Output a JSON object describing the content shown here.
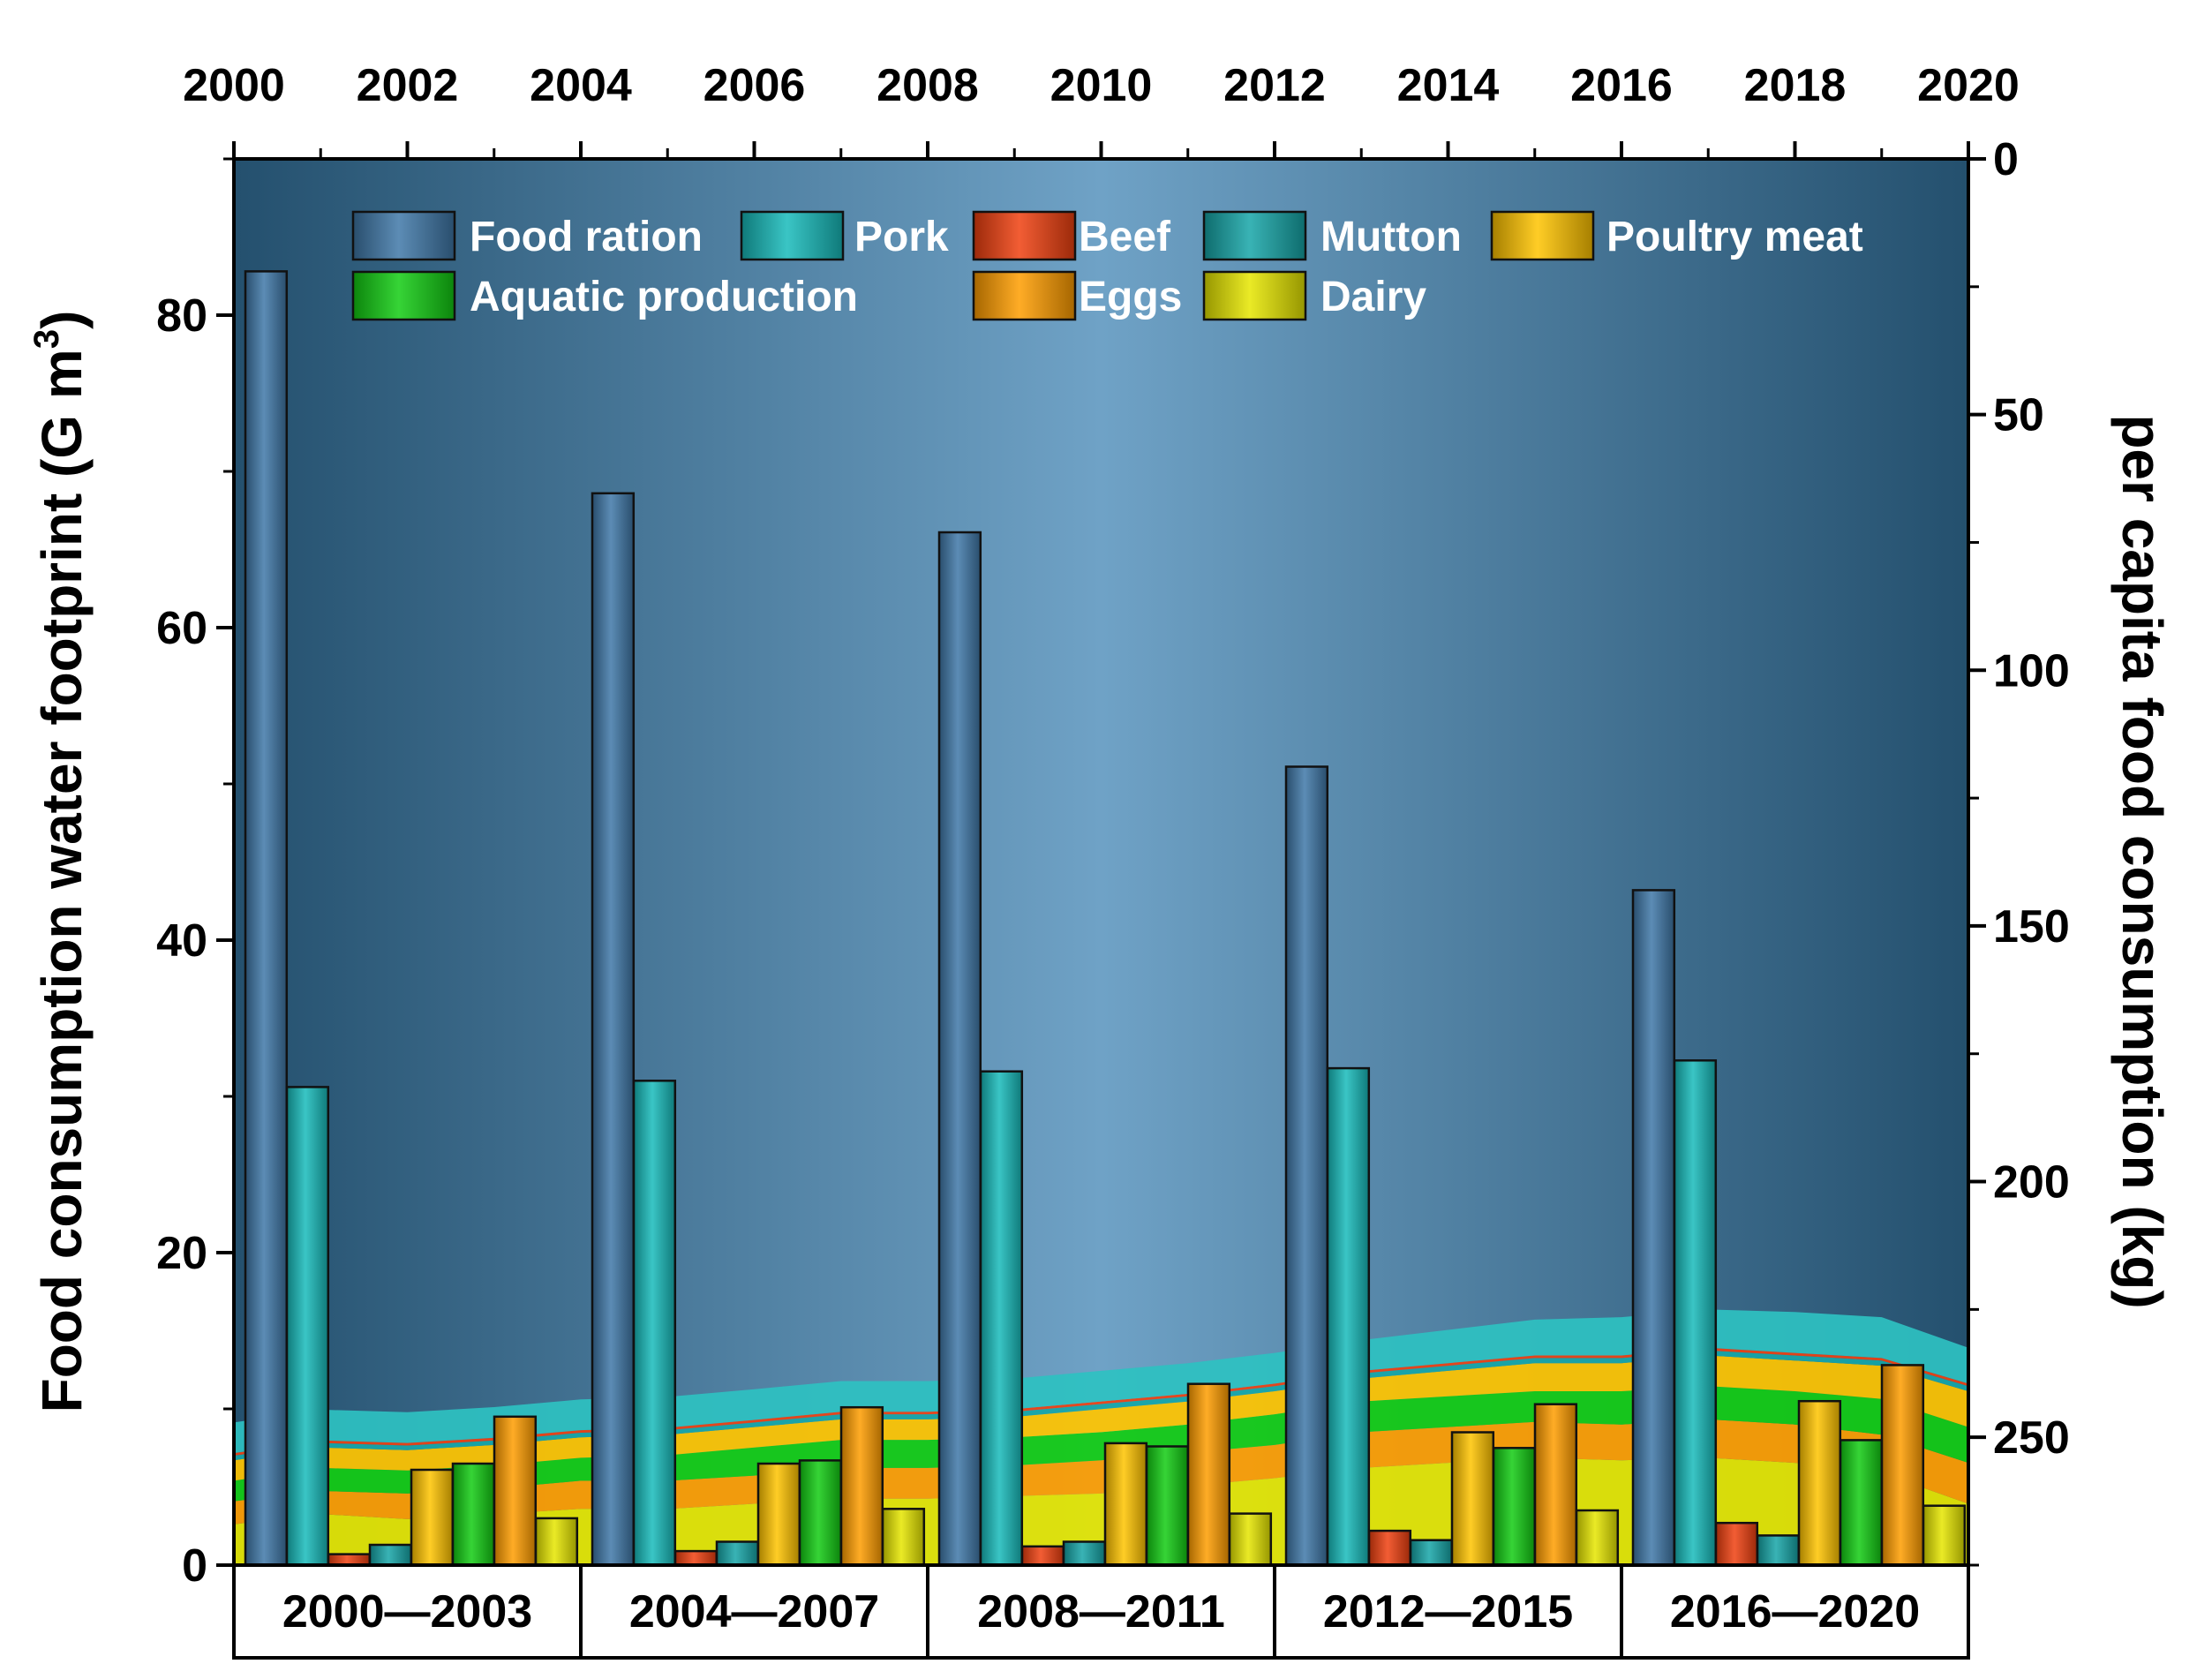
{
  "chart_data": {
    "type": "bar",
    "ylabel": "Food consumption water footprint (G m",
    "ylabel_sup": "3",
    "ylabel_close": ")",
    "y2label": "per capita food consumption (kg)",
    "ylim": [
      0,
      90
    ],
    "y2lim": [
      0,
      275
    ],
    "y2_inverted": true,
    "y_ticks": [
      "0",
      "20",
      "40",
      "60",
      "80"
    ],
    "y2_ticks": [
      "0",
      "50",
      "100",
      "150",
      "200",
      "250"
    ],
    "x_top_ticks": [
      "2000",
      "2002",
      "2004",
      "2006",
      "2008",
      "2010",
      "2012",
      "2014",
      "2016",
      "2018",
      "2020"
    ],
    "xlim_top": [
      2000,
      2020
    ],
    "categories": [
      "2000—2003",
      "2004—2007",
      "2008—2011",
      "2012—2015",
      "2016—2020"
    ],
    "legend_position": "top",
    "series": [
      {
        "name": "Food ration",
        "color": "#3f78a8",
        "values": [
          82.8,
          68.6,
          66.1,
          51.1,
          43.2
        ]
      },
      {
        "name": "Pork",
        "color": "#17bbbb",
        "values": [
          30.6,
          31.0,
          31.6,
          31.8,
          32.3
        ]
      },
      {
        "name": "Beef",
        "color": "#f04010",
        "values": [
          0.7,
          0.9,
          1.2,
          2.2,
          2.7
        ]
      },
      {
        "name": "Mutton",
        "color": "#16a6a8",
        "values": [
          1.3,
          1.5,
          1.5,
          1.6,
          1.9
        ]
      },
      {
        "name": "Poultry meat",
        "color": "#ffc400",
        "values": [
          6.1,
          6.5,
          7.8,
          8.5,
          10.5
        ]
      },
      {
        "name": "Aquatic production",
        "color": "#12cc12",
        "values": [
          6.5,
          6.7,
          7.6,
          7.5,
          8.0
        ]
      },
      {
        "name": "Eggs",
        "color": "#ff9d00",
        "values": [
          9.5,
          10.1,
          11.6,
          10.3,
          12.8
        ]
      },
      {
        "name": "Dairy",
        "color": "#e6e600",
        "values": [
          3.0,
          3.6,
          3.3,
          3.5,
          3.8
        ]
      }
    ],
    "stacked_area_per_capita_kg": {
      "x": [
        2000,
        2001,
        2002,
        2003,
        2004,
        2005,
        2006,
        2007,
        2008,
        2009,
        2010,
        2011,
        2012,
        2013,
        2014,
        2015,
        2016,
        2017,
        2018,
        2019,
        2020
      ],
      "order": [
        "Dairy",
        "Eggs",
        "Aquatic production",
        "Poultry meat",
        "Mutton",
        "Beef",
        "Pork"
      ],
      "series": [
        {
          "name": "Dairy",
          "color": "#e6e600",
          "values": [
            8,
            10,
            9,
            10,
            11,
            11,
            12,
            13,
            13,
            13.5,
            14,
            15.5,
            17,
            19,
            20,
            21,
            20.5,
            21,
            20,
            18,
            12
          ]
        },
        {
          "name": "Eggs",
          "color": "#ff9d00",
          "values": [
            4.5,
            4.5,
            5,
            5,
            5.5,
            5.5,
            5.5,
            6,
            6,
            6,
            6.5,
            6.5,
            6.5,
            7,
            7,
            7,
            7,
            7.5,
            7.5,
            7.5,
            8
          ]
        },
        {
          "name": "Aquatic production",
          "color": "#12cc12",
          "values": [
            4,
            4.5,
            4.5,
            4.5,
            4.5,
            5,
            5.5,
            5.5,
            5.5,
            5.5,
            5.5,
            5.5,
            6,
            6,
            6,
            6,
            6.5,
            6.5,
            6.5,
            7,
            7
          ]
        },
        {
          "name": "Poultry meat",
          "color": "#ffc400",
          "values": [
            4,
            4,
            4,
            4,
            4,
            4,
            4,
            4,
            4,
            4,
            4.5,
            4.5,
            4.5,
            4.5,
            5,
            5.5,
            5.5,
            6,
            6,
            6.5,
            7
          ]
        },
        {
          "name": "Mutton",
          "color": "#16a6a8",
          "values": [
            0.9,
            0.9,
            0.9,
            0.9,
            0.9,
            0.9,
            0.9,
            1,
            1,
            1,
            1,
            1,
            1,
            1,
            1,
            1,
            1,
            1,
            1,
            1,
            1
          ]
        },
        {
          "name": "Beef",
          "color": "#f04010",
          "values": [
            0.5,
            0.5,
            0.5,
            0.5,
            0.5,
            0.5,
            0.5,
            0.5,
            0.5,
            0.5,
            0.5,
            0.5,
            0.5,
            0.5,
            0.5,
            0.5,
            0.5,
            0.5,
            0.5,
            0.5,
            0.5
          ]
        },
        {
          "name": "Pork",
          "color": "#2ec1c1",
          "values": [
            6,
            6,
            6,
            6,
            6,
            6,
            6,
            6,
            6,
            6,
            6,
            6,
            6,
            6,
            6.5,
            7,
            7.5,
            7.5,
            8,
            8,
            7
          ]
        }
      ]
    },
    "background_gradient": [
      "#24506e",
      "#6fa2c6",
      "#24506e"
    ]
  }
}
